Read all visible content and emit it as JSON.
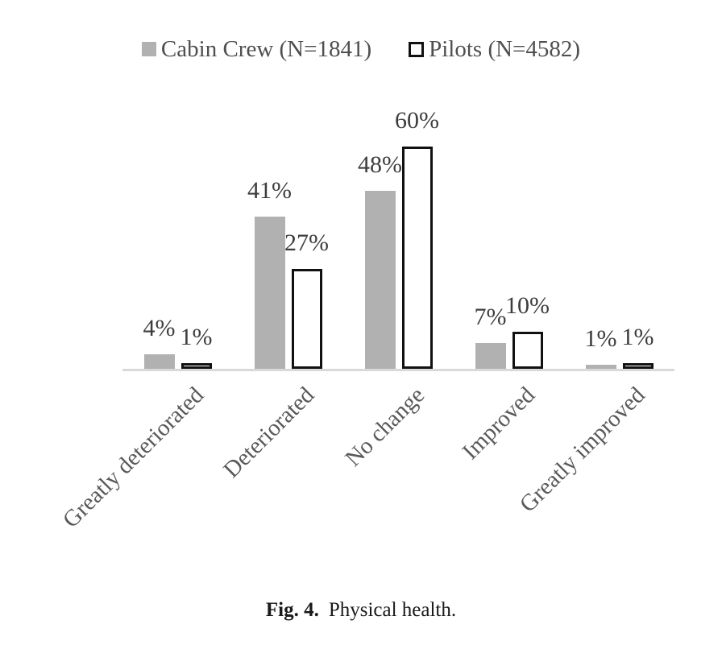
{
  "legend": {
    "items": [
      {
        "label": "Cabin Crew (N=1841)",
        "swatch": "gray-filled"
      },
      {
        "label": "Pilots (N=4582)",
        "swatch": "white-outlined"
      }
    ]
  },
  "chart_data": {
    "type": "bar",
    "categories": [
      "Greatly deteriorated",
      "Deteriorated",
      "No change",
      "Improved",
      "Greatly improved"
    ],
    "series": [
      {
        "name": "Cabin Crew (N=1841)",
        "values": [
          4,
          41,
          48,
          7,
          1
        ],
        "fill": "#b1b1b1",
        "outline": "none"
      },
      {
        "name": "Pilots (N=4582)",
        "values": [
          1,
          27,
          60,
          10,
          1
        ],
        "fill": "#ffffff",
        "outline": "#111111"
      }
    ],
    "value_label_suffix": "%",
    "value_labels": [
      [
        "4%",
        "41%",
        "48%",
        "7%",
        "1%"
      ],
      [
        "1%",
        "27%",
        "60%",
        "10%",
        "1%"
      ]
    ],
    "ylim": [
      0,
      65
    ],
    "grid": false,
    "y_axis_visible": false,
    "legend_position": "top",
    "category_label_rotation_deg": 45
  },
  "caption": {
    "prefix": "Fig. 4.",
    "text": "Physical health."
  },
  "colors": {
    "bar_fill_gray": "#b1b1b1",
    "bar_outline_black": "#111111",
    "axis_line": "#d9d9d9",
    "value_label": "#3d3d3d",
    "category_label": "#595959",
    "legend_text": "#4f4f4f",
    "background": "#ffffff"
  }
}
